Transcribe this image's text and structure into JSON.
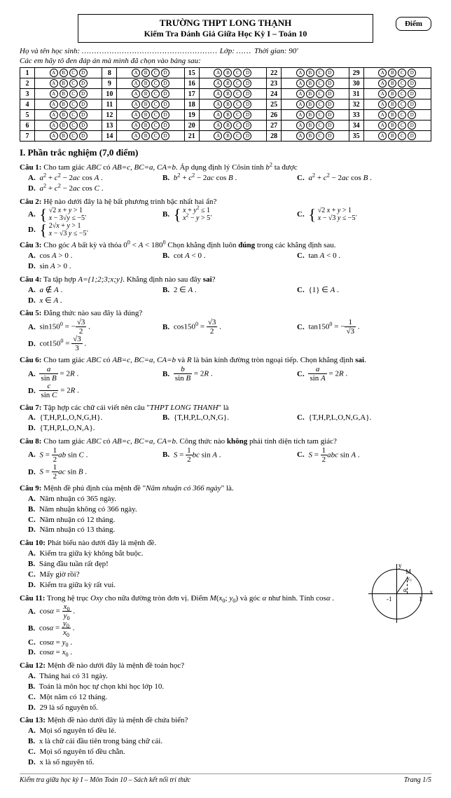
{
  "header": {
    "school": "TRƯỜNG THPT LONG THẠNH",
    "exam": "Kiểm Tra Đánh Giá Giữa Học Kỳ I – Toán 10",
    "score_label": "Điểm",
    "name_label": "Họ và tên học sinh:",
    "class_label": "Lớp:",
    "time_label": "Thời gian: 90'",
    "instruction": "Các em hãy tô đen đáp án mà mình đã chọn vào bảng sau:"
  },
  "bubble": {
    "total": 35,
    "letters": [
      "A",
      "B",
      "C",
      "D"
    ]
  },
  "section1": "I. Phần trắc nghiệm (7,0 điểm)",
  "q1": {
    "stem": "Câu 1: Cho tam giác ABC có AB=c, BC=a, CA=b. Áp dụng định lý Côsin tính b² ta được",
    "A": "a² + c² − 2ac cos A .",
    "B": "b² + c² − 2ac cos B .",
    "C": "a² + c² − 2ac cos B .",
    "D": "a² + c² − 2ac cos C ."
  },
  "q2": {
    "stem": "Câu 2: Hệ nào dưới đây là hệ bất phương trình bậc nhất hai ẩn?"
  },
  "q3": {
    "stem": "Câu 3: Cho góc A bất kỳ và thỏa 0° < A < 180°  Chọn khẳng định luôn đúng trong các khẳng định sau.",
    "A": "cos A > 0 .",
    "B": "cot A < 0 .",
    "C": "tan A < 0 .",
    "D": "sin A > 0 ."
  },
  "q4": {
    "stem": "Câu 4: Ta tập hợp A={1;2;3;x;y}. Khẳng định nào sau đây sai?",
    "A": "a ∉ A .",
    "B": "2 ∈ A .",
    "C": "{1} ∈ A .",
    "D": "x ∈ A ."
  },
  "q5": {
    "stem": "Câu 5: Đẳng thức nào sau đây là đúng?"
  },
  "q6": {
    "stem": "Câu 6: Cho tam giác ABC có AB=c, BC=a, CA=b và R là bán kính đường tròn ngoại tiếp. Chọn khẳng định sai."
  },
  "q7": {
    "stem": "Câu 7: Tập hợp các chữ cái viết nên câu \"THPT LONG THANH\" là",
    "A": "{T,H,P,L,O,N,G,H}.",
    "B": "{T,H,P,L,O,N,G}.",
    "C": "{T,H,P,L,O,N,G,A}.",
    "D": "{T,H,P,L,O,N,A}."
  },
  "q8": {
    "stem": "Câu 8: Cho tam giác ABC có AB=c, BC=a, CA=b. Công thức nào không phải tính diện tích tam giác?"
  },
  "q9": {
    "stem": "Câu 9: Mệnh đề phủ định của mệnh đề \"Năm nhuận có 366 ngày\" là.",
    "A": "Năm nhuận có 365 ngày.",
    "B": "Năm nhuận không có 366 ngày.",
    "C": "Năm nhuận có 12 tháng.",
    "D": "Năm nhuận có 13 tháng."
  },
  "q10": {
    "stem": "Câu 10: Phát biểu nào dưới đây là mệnh đề.",
    "A": "Kiểm tra giữa kỳ không bắt buộc.",
    "B": "Sáng đầu tuần rất đẹp!",
    "C": "Mấy giờ rồi?",
    "D": "Kiểm tra giữa kỳ rất vui."
  },
  "q11": {
    "stem": "Câu 11: Trong hệ trục Oxy cho nữa đường tròn đơn vị. Điểm M(x₀; y₀) và góc α như hình. Tính cos α ."
  },
  "q12": {
    "stem": "Câu 12: Mệnh đề nào dưới đây là mệnh đề toán học?",
    "A": "Tháng hai có 31 ngày.",
    "B": "Toán là môn học tự chọn khi học lớp 10.",
    "C": "Một năm có 12 tháng.",
    "D": "29 là số nguyên tố."
  },
  "q13": {
    "stem": "Câu 13: Mệnh đề nào dưới đây là mệnh đề chứa biến?",
    "A": "Mọi số nguyên tố đều lẻ.",
    "B": "x là chữ cái đầu tiên trong bảng chữ cái.",
    "C": "Mọi số nguyên tố đều chẵn.",
    "D": "x là số nguyên tố."
  },
  "footer": {
    "left": "Kiểm tra giữa học kỳ I – Môn Toán 10 – Sách kết nối tri thức",
    "right": "Trang 1/5"
  }
}
